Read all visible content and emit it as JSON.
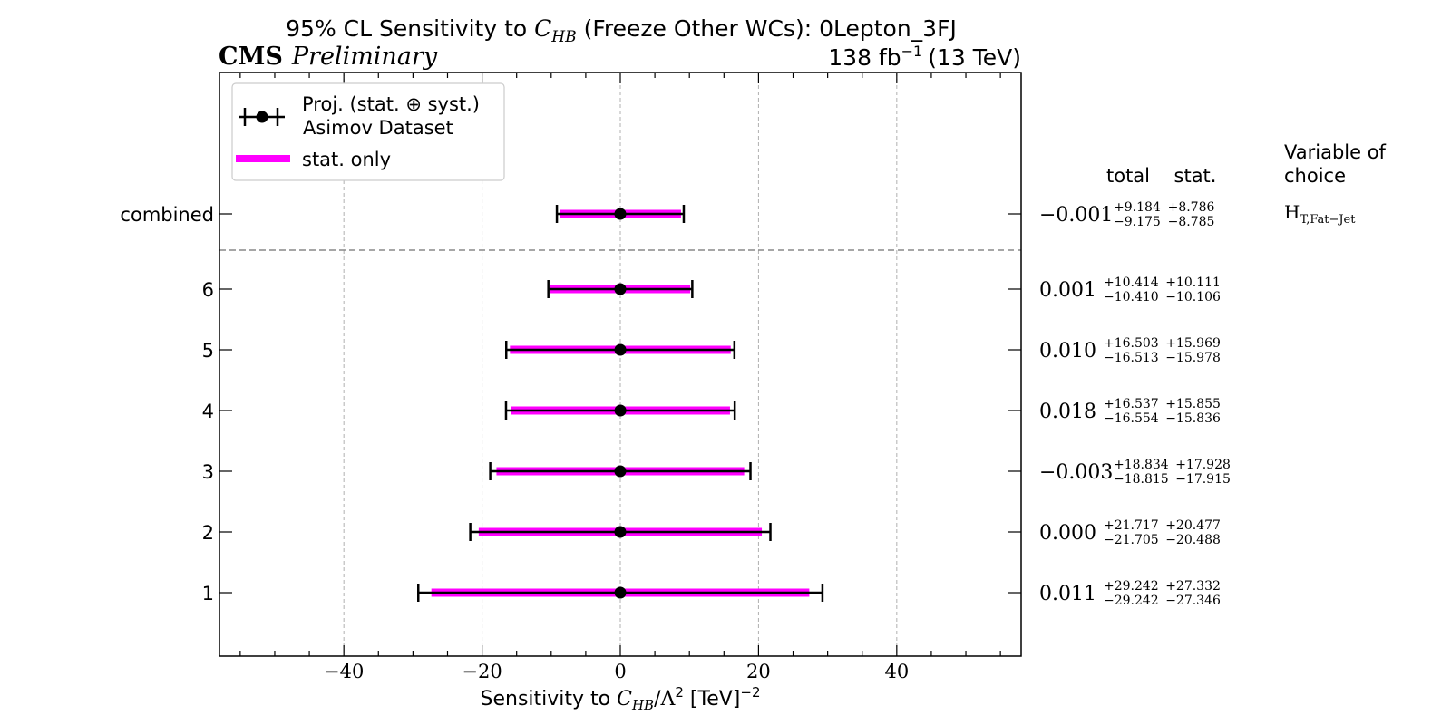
{
  "chart_data": {
    "type": "errorbar",
    "title_prefix": "95% CL Sensitivity to ",
    "title_wc": "C",
    "title_wc_sub": "HB",
    "title_suffix": " (Freeze Other WCs): 0Lepton_3FJ",
    "experiment": "CMS",
    "status": "Preliminary",
    "lumi_value": "138 fb",
    "lumi_exp": "−1",
    "energy": "(13 TeV)",
    "xlabel_prefix": "Sensitivity to ",
    "xlabel_wc": "C",
    "xlabel_wc_sub": "HB",
    "xlabel_rest": "/Λ",
    "xlabel_sq": "2",
    "xlabel_unit": " [TeV]",
    "xlabel_exp": "−2",
    "xlim": [
      -58,
      58
    ],
    "xticks": [
      -40,
      -20,
      0,
      20,
      40
    ],
    "xtick_labels": [
      "−40",
      "−20",
      "0",
      "20",
      "40"
    ],
    "colors": {
      "stat_band": "#ff00ff",
      "total": "#000000",
      "grid": "#b0b0b0"
    },
    "legend": {
      "total_line1": "Proj. (stat. ⊕ syst.)",
      "total_line2": "Asimov Dataset",
      "stat_label": "stat. only"
    },
    "table_headers": {
      "total": "total",
      "stat": "stat.",
      "variable_line1": "Variable of",
      "variable_line2": "choice"
    },
    "variable": {
      "main": "H",
      "sub": "T,Fat−Jet"
    },
    "rows": [
      {
        "label": "combined",
        "central": 0.0,
        "central_text": "−0.001",
        "total_up": "+9.184",
        "total_down": "−9.175",
        "stat_up": "+8.786",
        "stat_down": "−8.785",
        "total_lo": -9.176,
        "total_hi": 9.183,
        "stat_lo": -8.786,
        "stat_hi": 8.785
      },
      {
        "label": "6",
        "central": 0.001,
        "central_text": "0.001",
        "total_up": "+10.414",
        "total_down": "−10.410",
        "stat_up": "+10.111",
        "stat_down": "−10.106",
        "total_lo": -10.409,
        "total_hi": 10.415,
        "stat_lo": -10.105,
        "stat_hi": 10.112
      },
      {
        "label": "5",
        "central": 0.01,
        "central_text": "0.010",
        "total_up": "+16.503",
        "total_down": "−16.513",
        "stat_up": "+15.969",
        "stat_down": "−15.978",
        "total_lo": -16.503,
        "total_hi": 16.513,
        "stat_lo": -15.968,
        "stat_hi": 15.979
      },
      {
        "label": "4",
        "central": 0.018,
        "central_text": "0.018",
        "total_up": "+16.537",
        "total_down": "−16.554",
        "stat_up": "+15.855",
        "stat_down": "−15.836",
        "total_lo": -16.536,
        "total_hi": 16.555,
        "stat_lo": -15.818,
        "stat_hi": 15.873
      },
      {
        "label": "3",
        "central": -0.003,
        "central_text": "−0.003",
        "total_up": "+18.834",
        "total_down": "−18.815",
        "stat_up": "+17.928",
        "stat_down": "−17.915",
        "total_lo": -18.818,
        "total_hi": 18.831,
        "stat_lo": -17.918,
        "stat_hi": 17.925
      },
      {
        "label": "2",
        "central": 0.0,
        "central_text": "0.000",
        "total_up": "+21.717",
        "total_down": "−21.705",
        "stat_up": "+20.477",
        "stat_down": "−20.488",
        "total_lo": -21.705,
        "total_hi": 21.717,
        "stat_lo": -20.488,
        "stat_hi": 20.477
      },
      {
        "label": "1",
        "central": 0.011,
        "central_text": "0.011",
        "total_up": "+29.242",
        "total_down": "−29.242",
        "stat_up": "+27.332",
        "stat_down": "−27.346",
        "total_lo": -29.231,
        "total_hi": 29.253,
        "stat_lo": -27.335,
        "stat_hi": 27.343
      }
    ]
  }
}
